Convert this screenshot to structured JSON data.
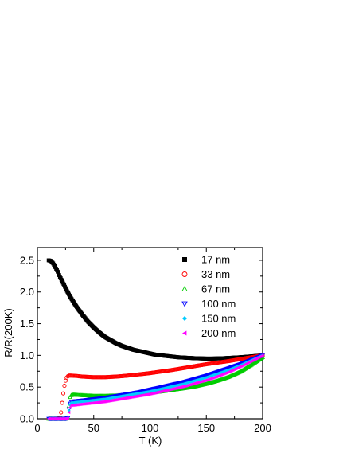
{
  "chart_data": {
    "type": "scatter",
    "title": "",
    "xlabel": "T (K)",
    "ylabel": "R/R(200K)",
    "xlim": [
      0,
      200
    ],
    "ylim": [
      0,
      2.7
    ],
    "x_ticks": [
      0,
      50,
      100,
      150,
      200
    ],
    "y_ticks": [
      0.0,
      0.5,
      1.0,
      1.5,
      2.0,
      2.5
    ],
    "x_tick_labels": [
      "0",
      "50",
      "100",
      "150",
      "200"
    ],
    "y_tick_labels": [
      "0.0",
      "0.5",
      "1.0",
      "1.5",
      "2.0",
      "2.5"
    ],
    "grid": false,
    "legend_position": "top-right",
    "series": [
      {
        "name": "17 nm",
        "color": "#000000",
        "marker": "square-filled",
        "x": [
          10,
          12,
          14,
          16,
          18,
          20,
          22,
          25,
          28,
          31,
          35,
          40,
          45,
          50,
          55,
          60,
          65,
          70,
          75,
          80,
          85,
          90,
          95,
          100,
          105,
          110,
          115,
          120,
          125,
          130,
          135,
          140,
          145,
          150,
          155,
          160,
          165,
          170,
          175,
          180,
          185,
          190,
          195,
          200
        ],
        "y": [
          2.5,
          2.49,
          2.45,
          2.39,
          2.32,
          2.24,
          2.17,
          2.06,
          1.96,
          1.87,
          1.76,
          1.64,
          1.53,
          1.44,
          1.36,
          1.29,
          1.24,
          1.19,
          1.15,
          1.12,
          1.09,
          1.07,
          1.05,
          1.03,
          1.01,
          1.0,
          0.99,
          0.98,
          0.97,
          0.965,
          0.96,
          0.955,
          0.952,
          0.95,
          0.95,
          0.952,
          0.955,
          0.96,
          0.965,
          0.97,
          0.977,
          0.984,
          0.992,
          1.0
        ]
      },
      {
        "name": "33 nm",
        "color": "#ff0000",
        "marker": "circle-open",
        "x": [
          10,
          14,
          18,
          20,
          21,
          22,
          23,
          24,
          25,
          26,
          27,
          28,
          30,
          35,
          40,
          50,
          60,
          70,
          80,
          90,
          100,
          110,
          120,
          130,
          140,
          150,
          160,
          170,
          180,
          190,
          200
        ],
        "y": [
          0.0,
          0.0,
          0.0,
          0.02,
          0.1,
          0.25,
          0.4,
          0.52,
          0.6,
          0.65,
          0.67,
          0.68,
          0.68,
          0.675,
          0.665,
          0.655,
          0.655,
          0.665,
          0.68,
          0.7,
          0.72,
          0.745,
          0.77,
          0.8,
          0.83,
          0.86,
          0.885,
          0.91,
          0.94,
          0.97,
          1.0
        ]
      },
      {
        "name": "67 nm",
        "color": "#00cc00",
        "marker": "triangle-up-open",
        "x": [
          10,
          15,
          20,
          25,
          27,
          28,
          29,
          30,
          32,
          35,
          40,
          50,
          60,
          70,
          80,
          90,
          100,
          110,
          120,
          130,
          140,
          150,
          160,
          170,
          180,
          190,
          200
        ],
        "y": [
          0.0,
          0.0,
          0.0,
          0.0,
          0.02,
          0.2,
          0.34,
          0.37,
          0.38,
          0.375,
          0.37,
          0.36,
          0.36,
          0.365,
          0.375,
          0.39,
          0.41,
          0.43,
          0.455,
          0.48,
          0.51,
          0.55,
          0.6,
          0.66,
          0.74,
          0.85,
          0.97
        ]
      },
      {
        "name": "100 nm",
        "color": "#0000ff",
        "marker": "triangle-down-open",
        "x": [
          10,
          15,
          20,
          25,
          27,
          28,
          29,
          30,
          35,
          40,
          50,
          60,
          70,
          80,
          90,
          100,
          110,
          120,
          130,
          140,
          150,
          160,
          170,
          180,
          190,
          200
        ],
        "y": [
          0.0,
          0.0,
          0.0,
          0.0,
          0.01,
          0.15,
          0.24,
          0.27,
          0.28,
          0.29,
          0.31,
          0.33,
          0.36,
          0.39,
          0.42,
          0.46,
          0.5,
          0.54,
          0.58,
          0.63,
          0.68,
          0.74,
          0.8,
          0.86,
          0.93,
          1.0
        ]
      },
      {
        "name": "150 nm",
        "color": "#00ccff",
        "marker": "diamond-filled",
        "x": [
          10,
          15,
          20,
          25,
          27,
          28,
          29,
          30,
          35,
          40,
          50,
          60,
          70,
          80,
          90,
          100,
          110,
          120,
          130,
          140,
          150,
          160,
          170,
          180,
          190,
          200
        ],
        "y": [
          0.0,
          0.0,
          0.0,
          0.0,
          0.01,
          0.13,
          0.22,
          0.25,
          0.26,
          0.27,
          0.29,
          0.31,
          0.34,
          0.37,
          0.4,
          0.43,
          0.47,
          0.51,
          0.55,
          0.6,
          0.65,
          0.71,
          0.77,
          0.84,
          0.92,
          1.0
        ]
      },
      {
        "name": "200 nm",
        "color": "#ff00ff",
        "marker": "triangle-left-filled",
        "x": [
          10,
          15,
          20,
          25,
          27,
          28,
          29,
          30,
          35,
          40,
          50,
          60,
          70,
          80,
          90,
          100,
          110,
          120,
          130,
          140,
          150,
          160,
          170,
          180,
          190,
          200
        ],
        "y": [
          0.0,
          0.0,
          0.0,
          0.0,
          0.01,
          0.1,
          0.18,
          0.21,
          0.22,
          0.23,
          0.25,
          0.27,
          0.3,
          0.33,
          0.36,
          0.39,
          0.43,
          0.47,
          0.51,
          0.56,
          0.61,
          0.67,
          0.74,
          0.82,
          0.91,
          1.0
        ]
      }
    ]
  }
}
